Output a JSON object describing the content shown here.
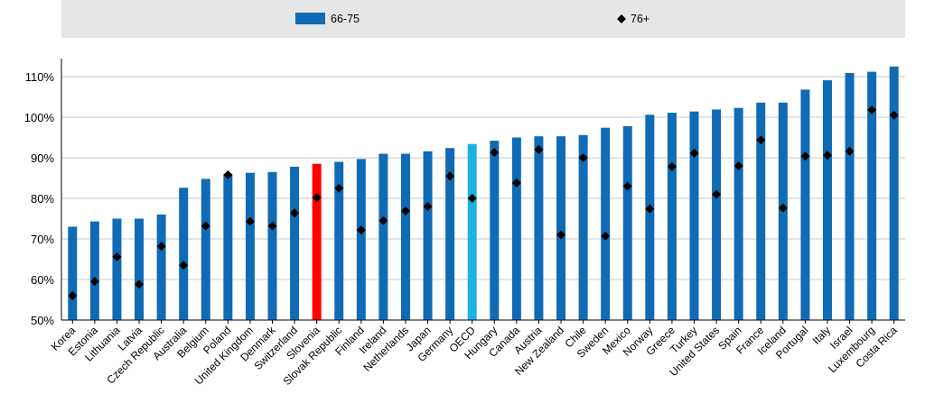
{
  "chart_data": {
    "type": "bar",
    "categories": [
      "Korea",
      "Estonia",
      "Lithuania",
      "Latvia",
      "Czech Republic",
      "Australia",
      "Belgium",
      "Poland",
      "United Kingdom",
      "Denmark",
      "Switzerland",
      "Slovenia",
      "Slovak Republic",
      "Finland",
      "Ireland",
      "Netherlands",
      "Japan",
      "Germany",
      "OECD",
      "Hungary",
      "Canada",
      "Austria",
      "New Zealand",
      "Chile",
      "Sweden",
      "Mexico",
      "Norway",
      "Greece",
      "Turkey",
      "United States",
      "Spain",
      "France",
      "Iceland",
      "Portugal",
      "Italy",
      "Israel",
      "Luxembourg",
      "Costa Rica"
    ],
    "series": [
      {
        "name": "66-75",
        "type": "bar",
        "values": [
          73,
          74.3,
          75,
          75,
          76,
          82.6,
          84.8,
          86,
          86.3,
          86.5,
          87.8,
          88.5,
          89,
          89.7,
          91,
          91,
          91.6,
          92.4,
          93.4,
          94.2,
          95,
          95.3,
          95.3,
          95.6,
          97.4,
          97.8,
          100.6,
          101.1,
          101.4,
          101.9,
          102.3,
          103.6,
          103.6,
          106.8,
          109.1,
          110.9,
          111.2,
          112.5
        ]
      },
      {
        "name": "76+",
        "type": "scatter",
        "values": [
          56,
          59.5,
          65.6,
          58.8,
          68.2,
          63.5,
          73.2,
          85.8,
          74.3,
          73.2,
          76.4,
          80.2,
          82.5,
          72.2,
          74.5,
          76.9,
          78,
          85.5,
          80,
          91.3,
          83.8,
          92,
          71,
          90,
          70.7,
          83,
          77.4,
          87.8,
          91.1,
          81,
          88,
          94.4,
          77.6,
          90.4,
          90.6,
          91.6,
          101.8,
          100.5
        ]
      }
    ],
    "highlight": {
      "Slovenia": "#ff0000",
      "OECD": "#1ab2e0"
    },
    "colors": {
      "bar": "#0f6bb5",
      "marker": "#000000",
      "grid": "#c8c8c8",
      "legend_bg": "#e6e6e6"
    },
    "y_ticks": [
      "50%",
      "60%",
      "70%",
      "80%",
      "90%",
      "100%",
      "110%"
    ],
    "ylim": [
      50,
      115
    ],
    "grid": true,
    "legend_position": "top"
  }
}
